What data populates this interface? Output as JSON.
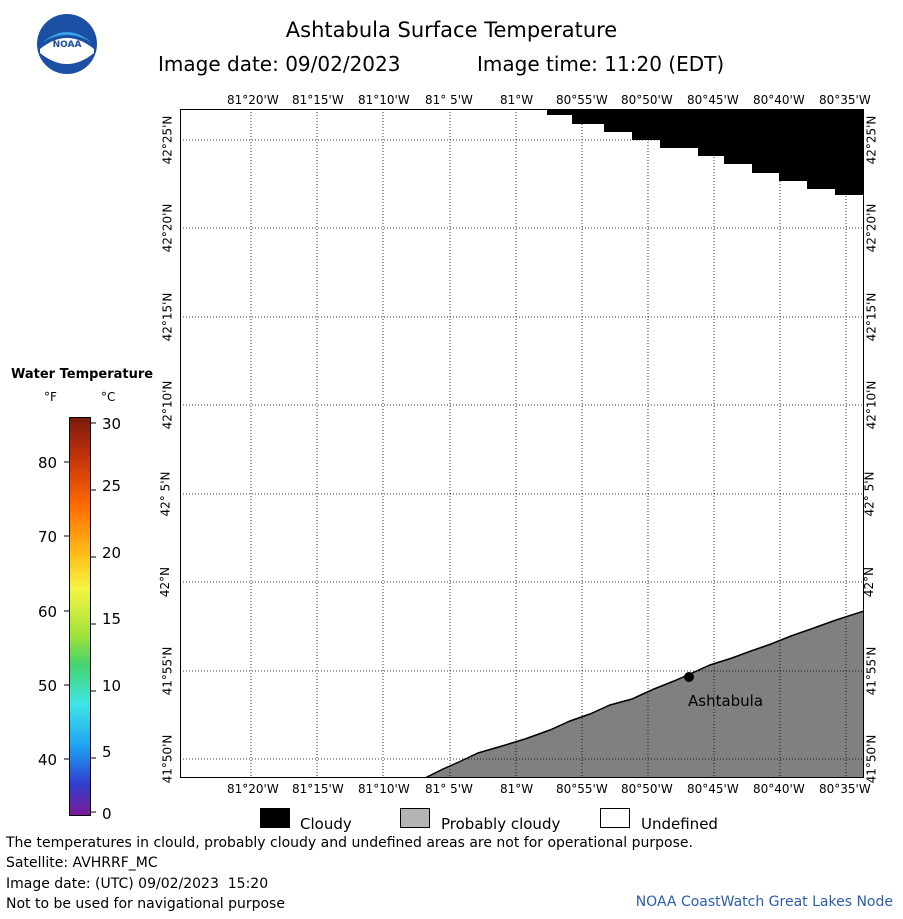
{
  "title": "Ashtabula Surface Temperature",
  "image_date_label": "Image date: 09/02/2023",
  "image_time_label": "Image time: 11:20 (EDT)",
  "logo_text": "NOAA",
  "map": {
    "lon_labels": [
      "81°20'W",
      "81°15'W",
      "81°10'W",
      "81° 5'W",
      "81°W",
      "80°55'W",
      "80°50'W",
      "80°45'W",
      "80°40'W",
      "80°35'W"
    ],
    "lat_labels": [
      "42°25'N",
      "42°20'N",
      "42°15'N",
      "42°10'N",
      "42° 5'N",
      "42°N",
      "41°55'N",
      "41°50'N"
    ],
    "city_label": "Ashtabula",
    "colors": {
      "cloudy": "#000000",
      "probably_cloudy": "#808080",
      "undefined": "#ffffff",
      "grid": "#000000"
    }
  },
  "legend": {
    "title": "Water Temperature",
    "unit_f": "°F",
    "unit_c": "°C",
    "ticks_f": [
      "80",
      "70",
      "60",
      "50",
      "40"
    ],
    "ticks_c": [
      "30",
      "25",
      "20",
      "15",
      "10",
      "5",
      "0"
    ]
  },
  "key": {
    "cloudy": "Cloudy",
    "probably_cloudy": "Probably cloudy",
    "undefined": "Undefined"
  },
  "footer": {
    "disclaimer": "The temperatures in clould, probably cloudy and undefined areas are not for operational purpose.",
    "satellite": "Satellite: AVHRRF_MC",
    "utc_date": "Image date: (UTC) 09/02/2023  15:20",
    "navigation": "Not to be used for navigational purpose",
    "credit": "NOAA CoastWatch Great Lakes Node"
  }
}
